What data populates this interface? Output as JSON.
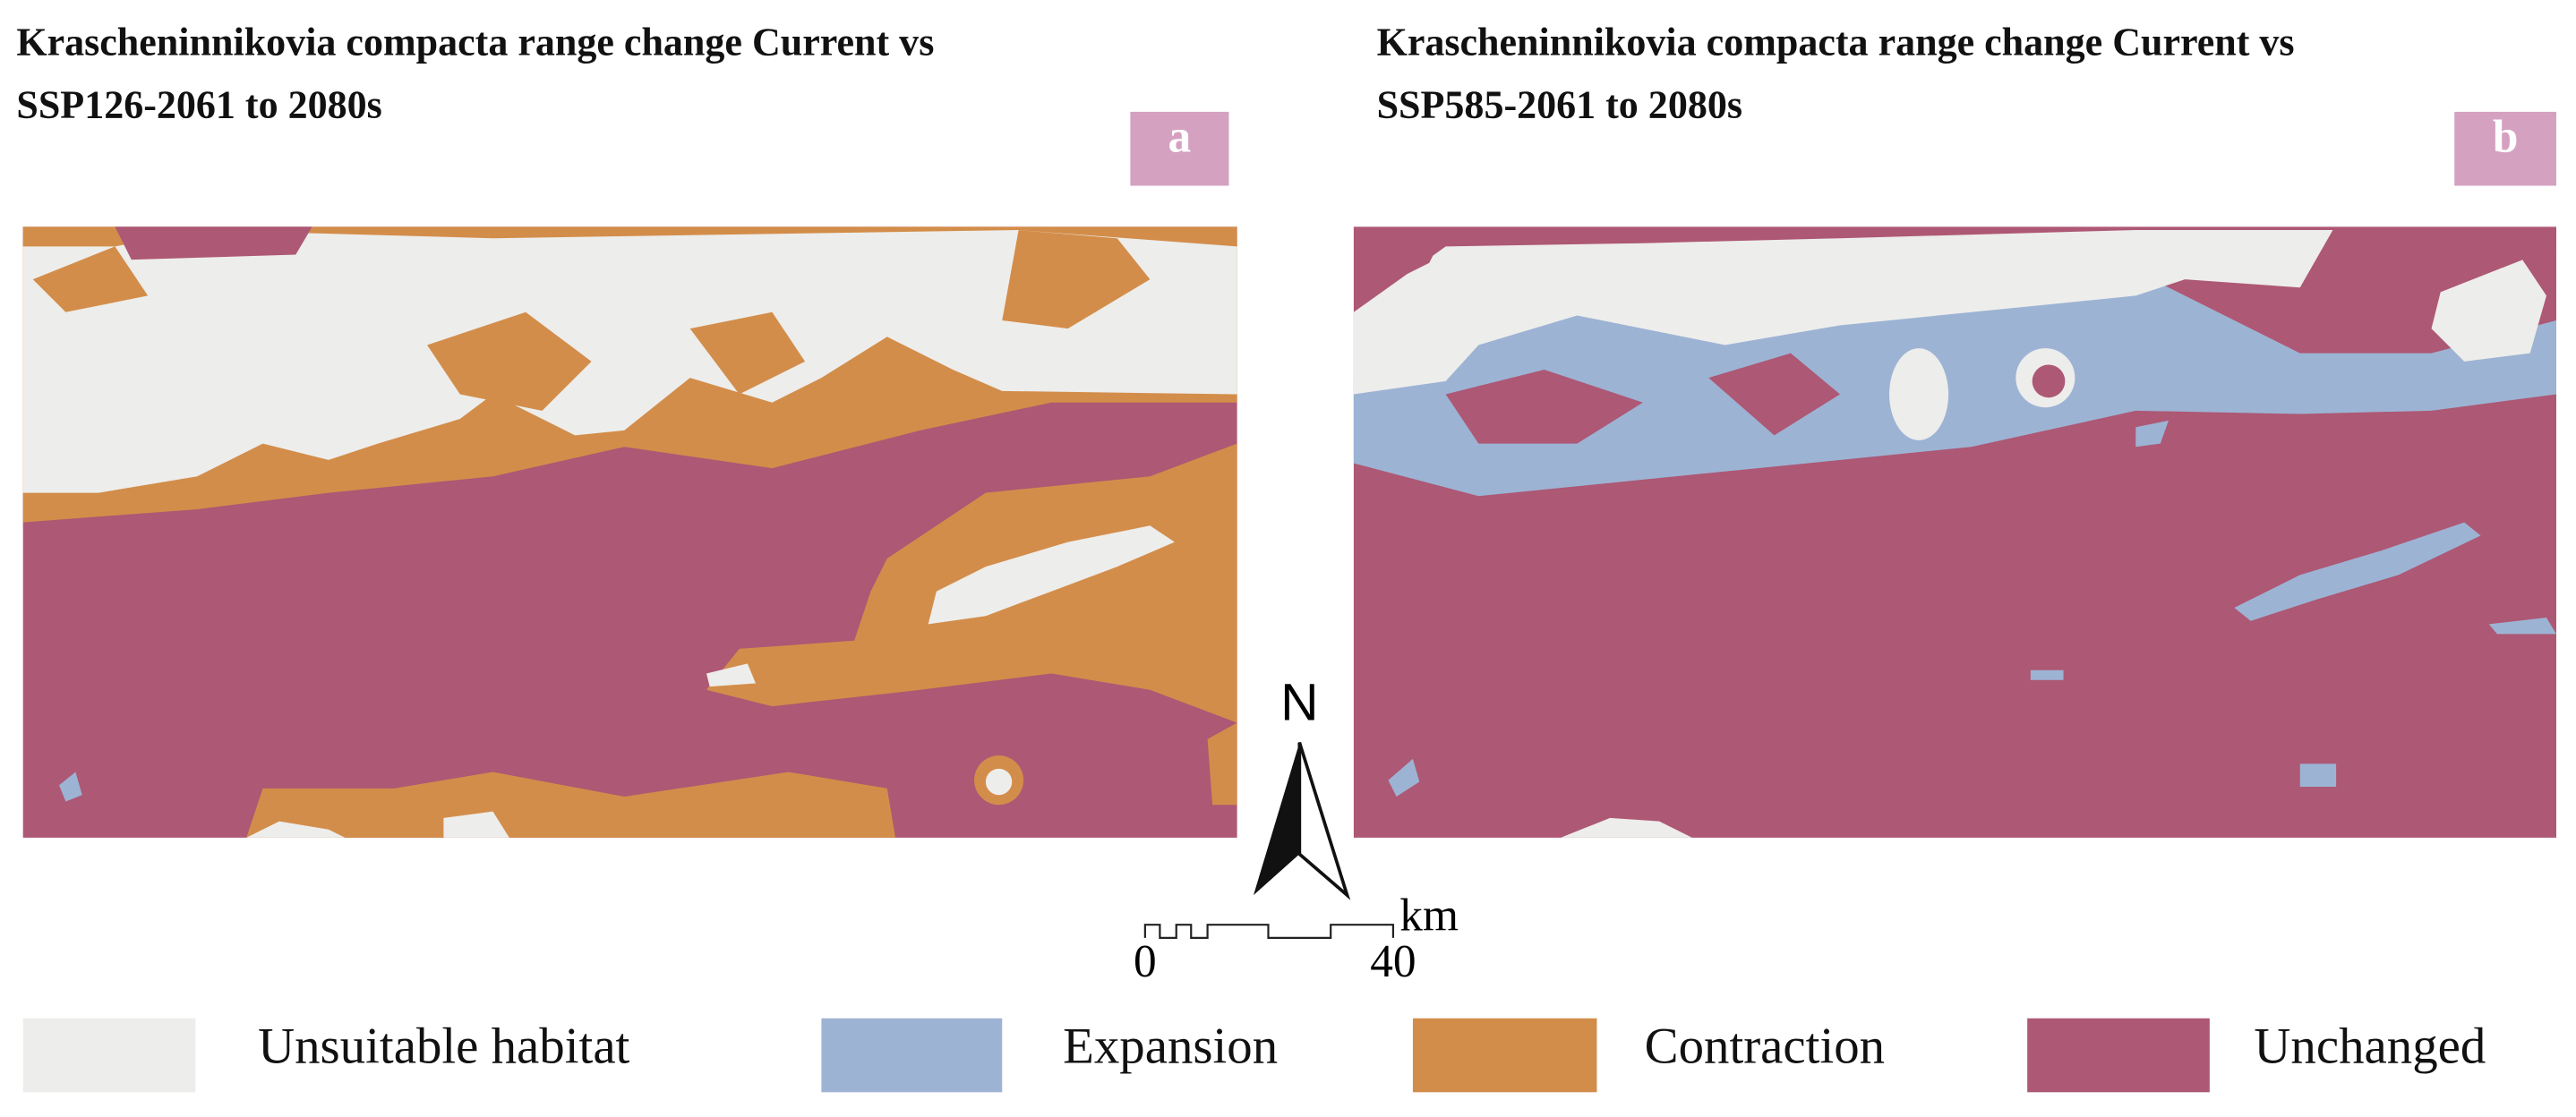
{
  "panels": [
    {
      "title_lines": [
        "Krascheninnikovia compacta range change Current vs",
        "SSP126-2061 to 2080s"
      ],
      "label": "a"
    },
    {
      "title_lines": [
        "Krascheninnikovia compacta range change Current vs",
        "SSP585-2061 to 2080s"
      ],
      "label": "b"
    }
  ],
  "north_arrow": "N",
  "scale_bar": {
    "unit": "km",
    "labels": [
      "0",
      "40"
    ]
  },
  "legend": [
    {
      "label": "Unsuitable habitat",
      "color": "#ededeb"
    },
    {
      "label": "Expansion",
      "color": "#9db3d4"
    },
    {
      "label": "Contraction",
      "color": "#d38d4a"
    },
    {
      "label": "Unchanged",
      "color": "#ad5874"
    }
  ]
}
